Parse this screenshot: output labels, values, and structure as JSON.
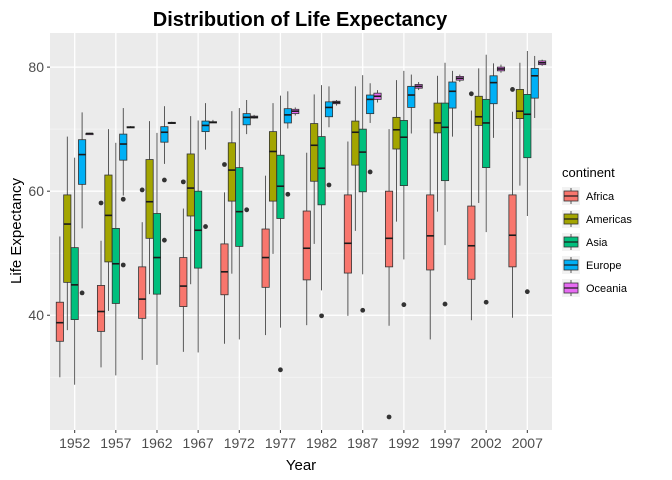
{
  "chart_data": {
    "type": "boxplot",
    "title": "Distribution of Life Expectancy",
    "xlabel": "Year",
    "ylabel": "Life Expectancy",
    "ylim": [
      21.5,
      85.5
    ],
    "yticks": [
      40,
      60,
      80
    ],
    "grid": true,
    "legend": {
      "title": "continent",
      "position": "right"
    },
    "categories": [
      "1952",
      "1957",
      "1962",
      "1967",
      "1972",
      "1977",
      "1982",
      "1987",
      "1992",
      "1997",
      "2002",
      "2007"
    ],
    "series": [
      {
        "name": "Africa",
        "color": "#F8766D",
        "boxes": [
          {
            "min": 30.0,
            "q1": 35.8,
            "median": 38.8,
            "q3": 42.1,
            "max": 52.7,
            "outliers": []
          },
          {
            "min": 31.6,
            "q1": 37.4,
            "median": 40.6,
            "q3": 44.8,
            "max": 52.0,
            "outliers": [
              58.1
            ]
          },
          {
            "min": 32.8,
            "q1": 39.5,
            "median": 42.6,
            "q3": 47.8,
            "max": 55.0,
            "outliers": [
              60.2
            ]
          },
          {
            "min": 34.1,
            "q1": 41.4,
            "median": 44.7,
            "q3": 49.3,
            "max": 57.2,
            "outliers": [
              61.5
            ]
          },
          {
            "min": 35.4,
            "q1": 43.3,
            "median": 47.0,
            "q3": 51.5,
            "max": 59.8,
            "outliers": [
              64.3
            ]
          },
          {
            "min": 36.8,
            "q1": 44.5,
            "median": 49.3,
            "q3": 53.9,
            "max": 62.5,
            "outliers": []
          },
          {
            "min": 38.4,
            "q1": 45.7,
            "median": 50.8,
            "q3": 56.8,
            "max": 66.2,
            "outliers": []
          },
          {
            "min": 39.9,
            "q1": 46.8,
            "median": 51.6,
            "q3": 59.4,
            "max": 68.0,
            "outliers": []
          },
          {
            "min": 38.3,
            "q1": 47.8,
            "median": 52.4,
            "q3": 60.0,
            "max": 70.0,
            "outliers": [
              23.6
            ]
          },
          {
            "min": 36.1,
            "q1": 47.3,
            "median": 52.8,
            "q3": 59.4,
            "max": 71.6,
            "outliers": []
          },
          {
            "min": 39.2,
            "q1": 45.8,
            "median": 51.2,
            "q3": 57.6,
            "max": 73.0,
            "outliers": [
              75.7
            ]
          },
          {
            "min": 39.6,
            "q1": 47.8,
            "median": 52.9,
            "q3": 59.4,
            "max": 72.8,
            "outliers": [
              76.4
            ]
          }
        ]
      },
      {
        "name": "Americas",
        "color": "#A3A500",
        "boxes": [
          {
            "min": 37.6,
            "q1": 45.3,
            "median": 54.7,
            "q3": 59.4,
            "max": 68.8,
            "outliers": []
          },
          {
            "min": 40.7,
            "q1": 48.6,
            "median": 56.1,
            "q3": 62.6,
            "max": 70.0,
            "outliers": []
          },
          {
            "min": 43.4,
            "q1": 52.4,
            "median": 58.3,
            "q3": 65.1,
            "max": 71.3,
            "outliers": []
          },
          {
            "min": 45.0,
            "q1": 56.0,
            "median": 60.5,
            "q3": 66.0,
            "max": 72.1,
            "outliers": []
          },
          {
            "min": 46.7,
            "q1": 58.4,
            "median": 63.4,
            "q3": 67.8,
            "max": 72.9,
            "outliers": []
          },
          {
            "min": 49.9,
            "q1": 58.4,
            "median": 66.4,
            "q3": 69.6,
            "max": 74.2,
            "outliers": []
          },
          {
            "min": 51.5,
            "q1": 61.6,
            "median": 67.4,
            "q3": 70.9,
            "max": 75.6,
            "outliers": []
          },
          {
            "min": 53.6,
            "q1": 64.2,
            "median": 69.5,
            "q3": 71.3,
            "max": 76.9,
            "outliers": []
          },
          {
            "min": 55.1,
            "q1": 66.8,
            "median": 69.9,
            "q3": 71.9,
            "max": 77.9,
            "outliers": []
          },
          {
            "min": 56.7,
            "q1": 69.4,
            "median": 71.0,
            "q3": 74.2,
            "max": 78.6,
            "outliers": []
          },
          {
            "min": 58.1,
            "q1": 70.6,
            "median": 72.0,
            "q3": 75.3,
            "max": 79.8,
            "outliers": []
          },
          {
            "min": 60.9,
            "q1": 71.7,
            "median": 72.9,
            "q3": 76.4,
            "max": 80.7,
            "outliers": []
          }
        ]
      },
      {
        "name": "Asia",
        "color": "#00BF7D",
        "boxes": [
          {
            "min": 28.8,
            "q1": 39.3,
            "median": 44.9,
            "q3": 50.9,
            "max": 65.4,
            "outliers": []
          },
          {
            "min": 30.3,
            "q1": 41.9,
            "median": 48.3,
            "q3": 54.0,
            "max": 67.8,
            "outliers": []
          },
          {
            "min": 32.0,
            "q1": 43.4,
            "median": 49.3,
            "q3": 56.4,
            "max": 69.4,
            "outliers": []
          },
          {
            "min": 34.0,
            "q1": 47.6,
            "median": 53.7,
            "q3": 60.0,
            "max": 71.4,
            "outliers": []
          },
          {
            "min": 36.1,
            "q1": 51.1,
            "median": 56.7,
            "q3": 63.8,
            "max": 73.4,
            "outliers": []
          },
          {
            "min": 38.0,
            "q1": 55.6,
            "median": 60.8,
            "q3": 65.8,
            "max": 75.4,
            "outliers": [
              31.2
            ]
          },
          {
            "min": 44.0,
            "q1": 57.8,
            "median": 63.7,
            "q3": 68.8,
            "max": 77.1,
            "outliers": [
              39.9
            ]
          },
          {
            "min": 46.6,
            "q1": 59.9,
            "median": 66.3,
            "q3": 70.0,
            "max": 78.7,
            "outliers": [
              40.8
            ]
          },
          {
            "min": 49.0,
            "q1": 60.9,
            "median": 68.7,
            "q3": 71.4,
            "max": 79.4,
            "outliers": [
              41.7
            ]
          },
          {
            "min": 51.3,
            "q1": 61.7,
            "median": 70.3,
            "q3": 74.2,
            "max": 80.7,
            "outliers": [
              41.8
            ]
          },
          {
            "min": 53.4,
            "q1": 63.8,
            "median": 71.0,
            "q3": 74.8,
            "max": 82.0,
            "outliers": [
              42.1
            ]
          },
          {
            "min": 56.0,
            "q1": 65.4,
            "median": 72.4,
            "q3": 75.6,
            "max": 82.6,
            "outliers": [
              43.8
            ]
          }
        ]
      },
      {
        "name": "Europe",
        "color": "#00B0F6",
        "boxes": [
          {
            "min": 54.0,
            "q1": 61.1,
            "median": 65.9,
            "q3": 68.3,
            "max": 72.7,
            "outliers": [
              43.6
            ]
          },
          {
            "min": 59.3,
            "q1": 65.0,
            "median": 67.6,
            "q3": 69.2,
            "max": 73.4,
            "outliers": [
              48.1,
              58.7
            ]
          },
          {
            "min": 64.4,
            "q1": 67.9,
            "median": 69.5,
            "q3": 70.4,
            "max": 73.7,
            "outliers": [
              52.1,
              61.8
            ]
          },
          {
            "min": 66.7,
            "q1": 69.6,
            "median": 70.6,
            "q3": 71.3,
            "max": 74.2,
            "outliers": [
              54.3
            ]
          },
          {
            "min": 69.2,
            "q1": 70.7,
            "median": 71.9,
            "q3": 72.5,
            "max": 74.7,
            "outliers": [
              57.0
            ]
          },
          {
            "min": 70.1,
            "q1": 71.0,
            "median": 72.3,
            "q3": 73.3,
            "max": 76.1,
            "outliers": [
              59.5
            ]
          },
          {
            "min": 70.3,
            "q1": 72.0,
            "median": 73.5,
            "q3": 74.4,
            "max": 76.9,
            "outliers": [
              61.0
            ]
          },
          {
            "min": 71.0,
            "q1": 72.5,
            "median": 74.8,
            "q3": 75.5,
            "max": 77.4,
            "outliers": [
              63.1
            ]
          },
          {
            "min": 69.3,
            "q1": 73.5,
            "median": 75.5,
            "q3": 76.9,
            "max": 78.8,
            "outliers": []
          },
          {
            "min": 68.8,
            "q1": 73.4,
            "median": 76.1,
            "q3": 77.6,
            "max": 79.4,
            "outliers": []
          },
          {
            "min": 68.6,
            "q1": 74.1,
            "median": 77.5,
            "q3": 78.6,
            "max": 80.6,
            "outliers": []
          },
          {
            "min": 71.8,
            "q1": 75.0,
            "median": 78.6,
            "q3": 79.8,
            "max": 81.8,
            "outliers": []
          }
        ]
      },
      {
        "name": "Oceania",
        "color": "#E76BF3",
        "boxes": [
          {
            "min": 69.1,
            "q1": 69.2,
            "median": 69.3,
            "q3": 69.3,
            "max": 69.4,
            "outliers": []
          },
          {
            "min": 70.2,
            "q1": 70.3,
            "median": 70.3,
            "q3": 70.4,
            "max": 70.5,
            "outliers": []
          },
          {
            "min": 70.9,
            "q1": 70.9,
            "median": 71.0,
            "q3": 71.1,
            "max": 71.2,
            "outliers": []
          },
          {
            "min": 71.0,
            "q1": 71.1,
            "median": 71.1,
            "q3": 71.2,
            "max": 71.5,
            "outliers": []
          },
          {
            "min": 71.7,
            "q1": 71.8,
            "median": 71.9,
            "q3": 72.1,
            "max": 72.3,
            "outliers": []
          },
          {
            "min": 72.2,
            "q1": 72.5,
            "median": 72.9,
            "q3": 73.2,
            "max": 73.5,
            "outliers": []
          },
          {
            "min": 73.8,
            "q1": 74.1,
            "median": 74.3,
            "q3": 74.5,
            "max": 74.7,
            "outliers": []
          },
          {
            "min": 74.3,
            "q1": 74.8,
            "median": 75.3,
            "q3": 75.8,
            "max": 76.3,
            "outliers": []
          },
          {
            "min": 76.3,
            "q1": 76.6,
            "median": 76.9,
            "q3": 77.2,
            "max": 77.6,
            "outliers": []
          },
          {
            "min": 77.6,
            "q1": 77.9,
            "median": 78.2,
            "q3": 78.5,
            "max": 78.8,
            "outliers": []
          },
          {
            "min": 79.1,
            "q1": 79.4,
            "median": 79.7,
            "q3": 80.0,
            "max": 80.4,
            "outliers": []
          },
          {
            "min": 80.2,
            "q1": 80.4,
            "median": 80.7,
            "q3": 81.0,
            "max": 81.2,
            "outliers": []
          }
        ]
      }
    ]
  }
}
